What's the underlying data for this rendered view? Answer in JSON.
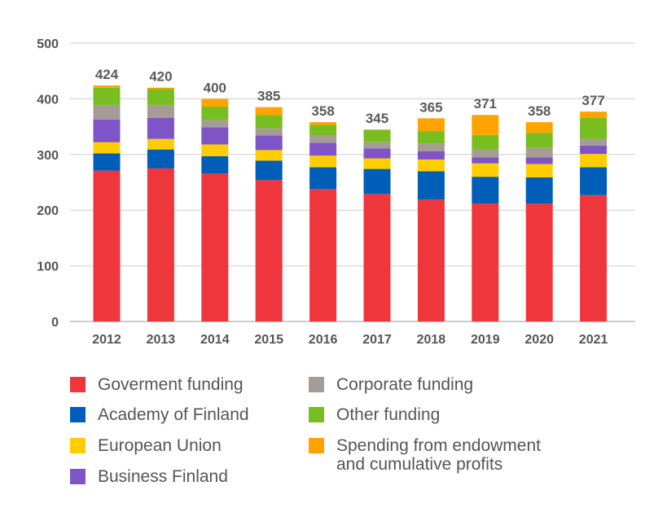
{
  "chart_data": {
    "type": "bar",
    "stacked": true,
    "title": "",
    "xlabel": "",
    "ylabel": "",
    "ylim": [
      0,
      500
    ],
    "yticks": [
      0,
      100,
      200,
      300,
      400,
      500
    ],
    "grid": true,
    "legend_position": "bottom",
    "categories": [
      "2012",
      "2013",
      "2014",
      "2015",
      "2016",
      "2017",
      "2018",
      "2019",
      "2020",
      "2021"
    ],
    "totals": [
      424,
      420,
      400,
      385,
      358,
      345,
      365,
      371,
      358,
      377
    ],
    "series": [
      {
        "name": "Goverment funding",
        "color": "#ee363c",
        "values": [
          271,
          275,
          266,
          254,
          238,
          229,
          219,
          212,
          212,
          227
        ]
      },
      {
        "name": "Academy of Finland",
        "color": "#005eb8",
        "values": [
          31,
          34,
          31,
          35,
          39,
          45,
          51,
          48,
          47,
          50
        ]
      },
      {
        "name": "European Union",
        "color": "#ffcd00",
        "values": [
          20,
          19,
          21,
          19,
          21,
          19,
          21,
          24,
          24,
          24
        ]
      },
      {
        "name": "Business Finland",
        "color": "#7e54c6",
        "values": [
          41,
          38,
          31,
          26,
          23,
          18,
          15,
          11,
          12,
          15
        ]
      },
      {
        "name": "Corporate funding",
        "color": "#a59d95",
        "values": [
          26,
          23,
          13,
          13,
          13,
          11,
          13,
          14,
          17,
          12
        ]
      },
      {
        "name": "Other funding",
        "color": "#78be20",
        "values": [
          31,
          29,
          24,
          24,
          19,
          22,
          23,
          26,
          27,
          38
        ]
      },
      {
        "name": "Spending from endowment and cumulative profits",
        "color": "#ffa300",
        "values": [
          4,
          2,
          14,
          14,
          5,
          1,
          23,
          36,
          19,
          11
        ]
      }
    ]
  },
  "legend": {
    "left": [
      "Goverment funding",
      "Academy of Finland",
      "European Union",
      "Business Finland"
    ],
    "right": [
      "Corporate funding",
      "Other funding",
      "Spending from endowment",
      "and cumulative profits"
    ]
  }
}
